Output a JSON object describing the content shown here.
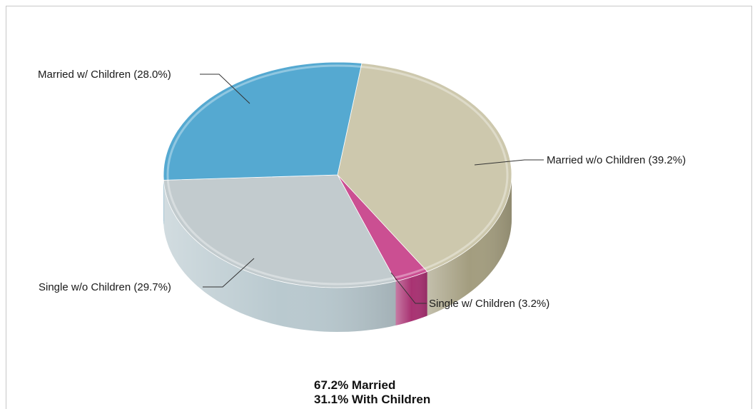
{
  "chart_data": {
    "type": "pie",
    "slices": [
      {
        "label": "Married w/o Children (39.2%)",
        "value": 39.2,
        "color": "#cdc8ad",
        "side": "#a39d7f"
      },
      {
        "label": "Single w/ Children (3.2%)",
        "value": 3.2,
        "color": "#cb4f92",
        "side": "#a83272"
      },
      {
        "label": "Single w/o Children (29.7%)",
        "value": 29.7,
        "color": "#c2cbce",
        "side": "#b9c9cf"
      },
      {
        "label": "Married w/ Children (28.0%)",
        "value": 28.0,
        "color": "#55a9d1",
        "side": "#3c8fba"
      }
    ],
    "summary": [
      "67.2% Married",
      "31.1% With Children"
    ]
  }
}
